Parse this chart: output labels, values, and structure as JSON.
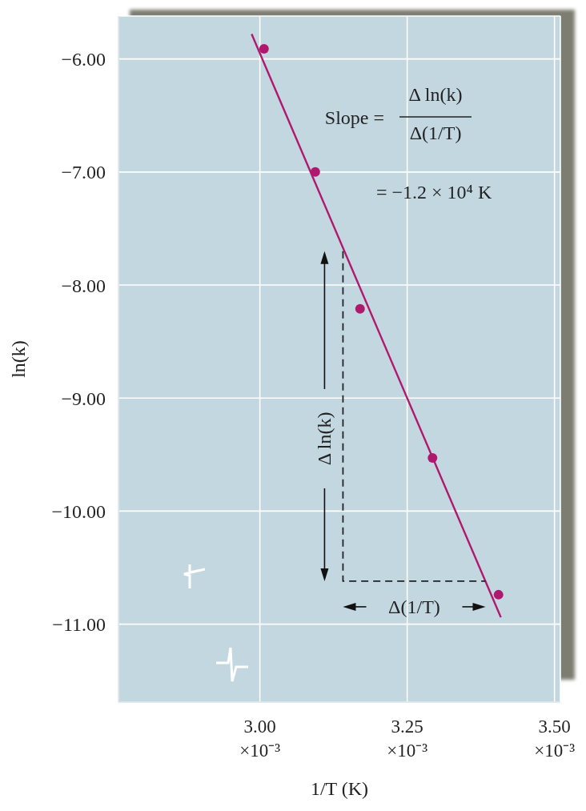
{
  "chart_data": {
    "type": "scatter",
    "xlabel": "1/T (K)",
    "ylabel": "ln(k)",
    "xlim": [
      0.00276,
      0.00351
    ],
    "ylim": [
      -11.69,
      -5.62
    ],
    "xticks": [
      {
        "value": 0.003,
        "label": "3.00 ×10⁻³"
      },
      {
        "value": 0.00325,
        "label": "3.25 ×10⁻³"
      },
      {
        "value": 0.0035,
        "label": "3.50 ×10⁻³"
      }
    ],
    "yticks": [
      {
        "value": -6,
        "label": "−6.00"
      },
      {
        "value": -7,
        "label": "−7.00"
      },
      {
        "value": -8,
        "label": "−8.00"
      },
      {
        "value": -9,
        "label": "−9.00"
      },
      {
        "value": -10,
        "label": "−10.00"
      },
      {
        "value": -11,
        "label": "−11.00"
      }
    ],
    "grid": true,
    "marker": "circle",
    "series": [
      {
        "color": "#b0186e",
        "x": [
          0.003007,
          0.003094,
          0.00317,
          0.003293,
          0.003405
        ],
        "values": [
          -5.91,
          -7.0,
          -8.21,
          -9.53,
          -10.74
        ]
      },
      {
        "type": "line",
        "color": "#b0186e",
        "marker": "none",
        "x": [
          0.002986,
          0.003409
        ],
        "values": [
          -5.78,
          -10.94
        ]
      },
      {
        "type": "line",
        "color": "#222222",
        "marker": "none",
        "line_style": "dashed",
        "x": [
          0.003141,
          0.003141,
          0.003383
        ],
        "values": [
          -7.7,
          -10.62,
          -10.62
        ]
      }
    ],
    "annotations": [
      "Slope =",
      "Δ ln(k)",
      "Δ(1/T)",
      "= −1.2 × 10⁴ K",
      "Δ ln(k)",
      "Δ(1/T)"
    ]
  }
}
